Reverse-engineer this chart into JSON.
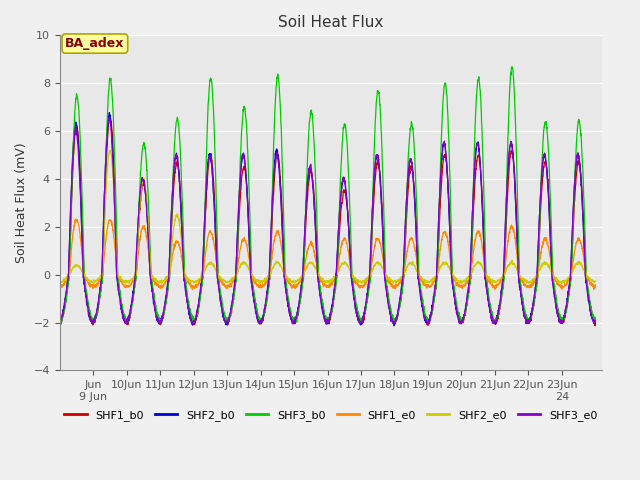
{
  "title": "Soil Heat Flux",
  "ylabel": "Soil Heat Flux (mV)",
  "ylim": [
    -4,
    10
  ],
  "yticks": [
    -4,
    -2,
    0,
    2,
    4,
    6,
    8,
    10
  ],
  "fig_bg_color": "#f0f0f0",
  "plot_bg_color": "#e8e8e8",
  "grid_color": "white",
  "annotation_text": "BA_adex",
  "annotation_text_color": "#8b0000",
  "annotation_bg_color": "#ffffa0",
  "annotation_border_color": "#aaa800",
  "series": [
    {
      "label": "SHF1_b0",
      "color": "#cc0000"
    },
    {
      "label": "SHF2_b0",
      "color": "#0000cc"
    },
    {
      "label": "SHF3_b0",
      "color": "#00cc00"
    },
    {
      "label": "SHF1_e0",
      "color": "#ff8800"
    },
    {
      "label": "SHF2_e0",
      "color": "#cccc00"
    },
    {
      "label": "SHF3_e0",
      "color": "#8800cc"
    }
  ],
  "xtick_positions": [
    9,
    10,
    11,
    12,
    13,
    14,
    15,
    16,
    17,
    18,
    19,
    20,
    21,
    22,
    23
  ],
  "xtick_labels": [
    "Jun\n9 Jun",
    "10Jun",
    "11Jun",
    "12Jun",
    "13Jun",
    "14Jun",
    "15Jun",
    "16Jun",
    "17Jun",
    "18Jun",
    "19Jun",
    "20Jun",
    "21Jun",
    "22Jun",
    "23Jun\n24"
  ],
  "xlim": [
    8.0,
    24.2
  ],
  "n_days": 16,
  "start_day": 8.0,
  "pts_per_day": 144
}
